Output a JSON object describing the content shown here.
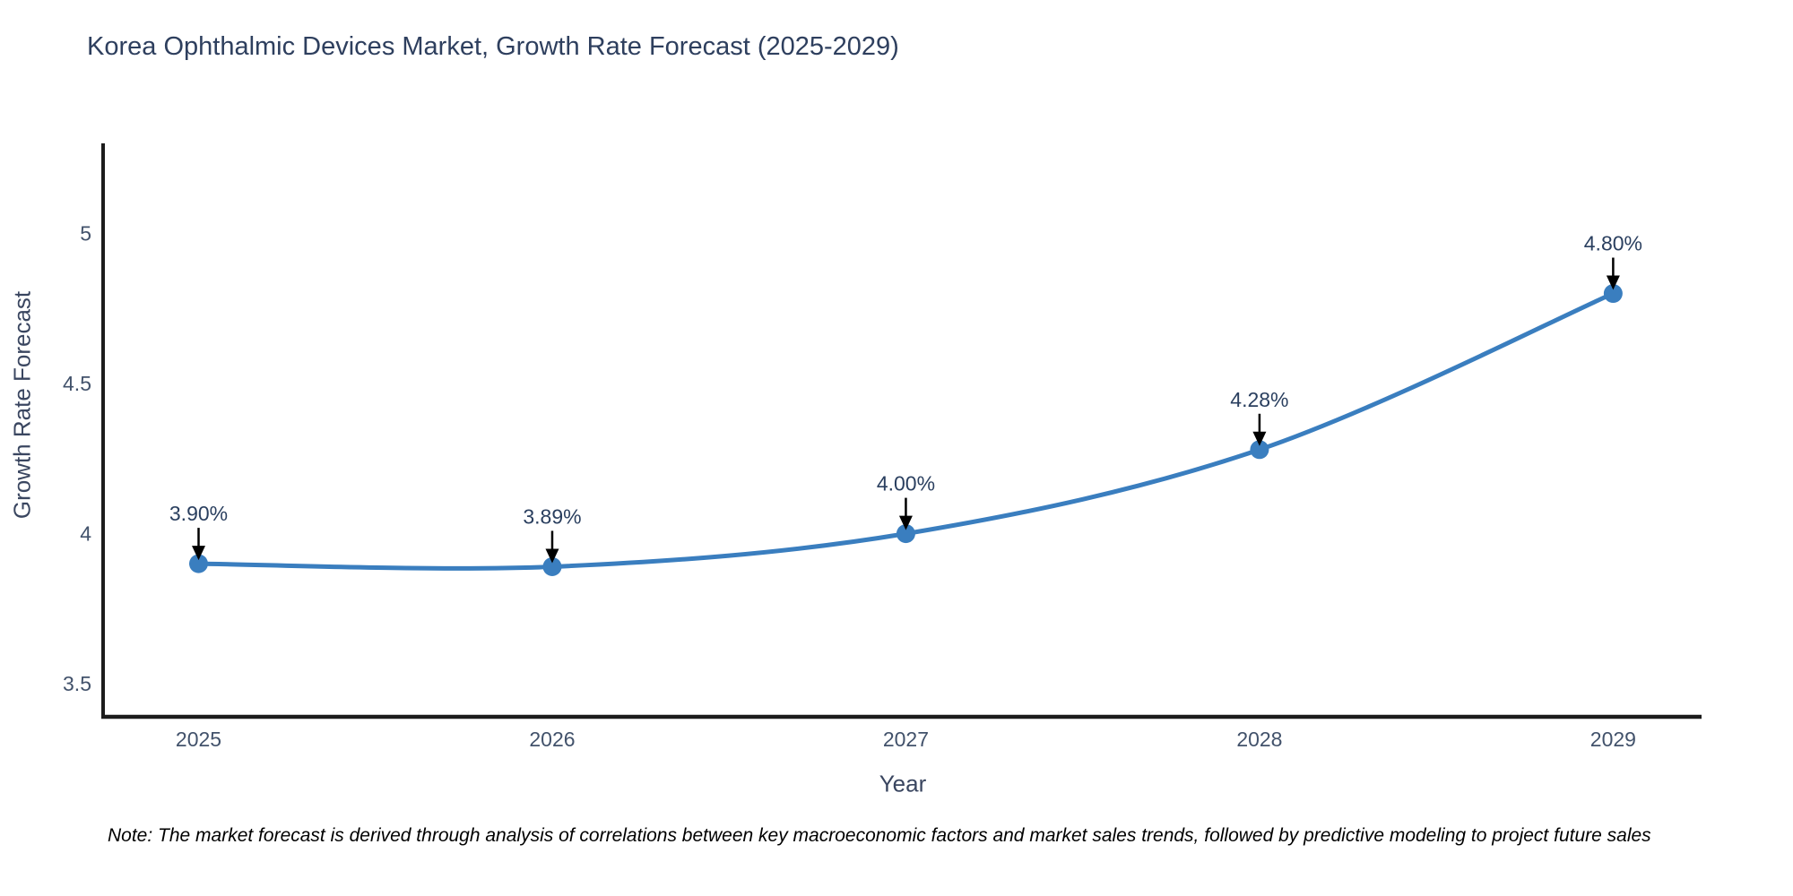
{
  "chart": {
    "title": "Korea Ophthalmic Devices Market, Growth Rate Forecast (2025-2029)"
  },
  "chart_data": {
    "type": "line",
    "x": [
      2025,
      2026,
      2027,
      2028,
      2029
    ],
    "series": [
      {
        "name": "Growth Rate Forecast",
        "values": [
          3.9,
          3.89,
          4.0,
          4.28,
          4.8
        ]
      }
    ],
    "point_labels": [
      "3.90%",
      "3.89%",
      "4.00%",
      "4.28%",
      "4.80%"
    ],
    "title": "Korea Ophthalmic Devices Market, Growth Rate Forecast (2025-2029)",
    "xlabel": "Year",
    "ylabel": "Growth Rate Forecast",
    "xlim": [
      2024.73,
      2029.25
    ],
    "ylim": [
      3.39,
      5.3
    ],
    "yticks": [
      3.5,
      4,
      4.5,
      5
    ],
    "ytick_labels": [
      "3.5",
      "4",
      "4.5",
      "5"
    ],
    "xticks": [
      2025,
      2026,
      2027,
      2028,
      2029
    ],
    "xtick_labels": [
      "2025",
      "2026",
      "2027",
      "2028",
      "2029"
    ],
    "line_shape": "spline",
    "grid": false,
    "legend": false
  },
  "note": "Note: The market forecast is derived through analysis of correlations between key macroeconomic factors and market sales trends, followed by predictive modeling to project future sales",
  "colors": {
    "line": "#3a7ebf",
    "marker": "#3a7ebf",
    "annotation_arrow": "#000000",
    "annotation_text": "#2a3f5f",
    "axis_line": "#1c1c1c",
    "tick_text": "#42526b",
    "title_text": "#2e3f5e",
    "note_text": "#000000",
    "background": "#ffffff"
  }
}
